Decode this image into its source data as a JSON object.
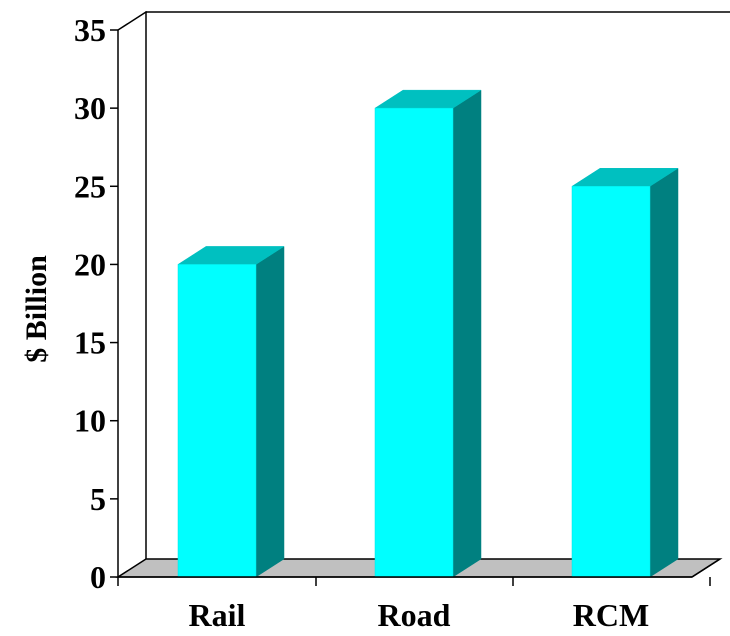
{
  "chart_data": {
    "type": "bar",
    "style": "3d",
    "categories": [
      "Rail",
      "Road",
      "RCM"
    ],
    "values": [
      20,
      30,
      25
    ],
    "title": "",
    "xlabel": "",
    "ylabel": "$ Billion",
    "ylim": [
      0,
      35
    ],
    "yticks": [
      "0",
      "5",
      "10",
      "15",
      "20",
      "25",
      "30",
      "35"
    ],
    "grid": false,
    "legend": "none",
    "colors": {
      "bar_front": "#00FFFF",
      "bar_top": "#00C0C0",
      "bar_side": "#008080",
      "floor": "#C0C0C0",
      "axis": "#000000"
    }
  }
}
